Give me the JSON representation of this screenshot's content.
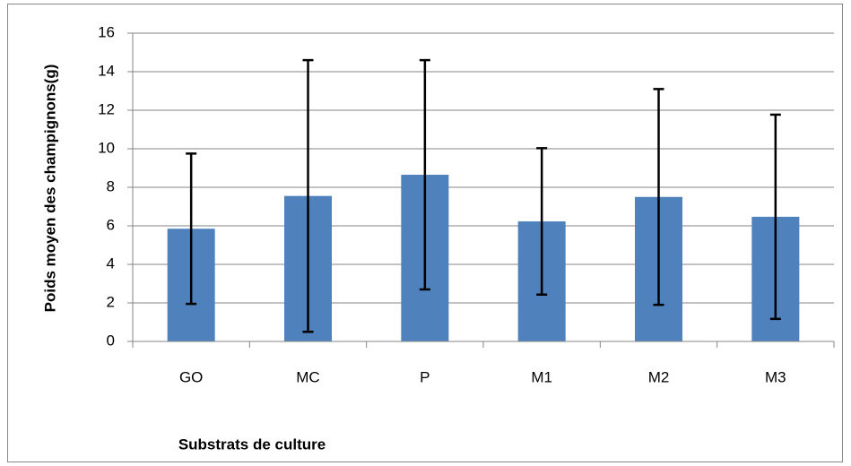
{
  "chart_data": {
    "type": "bar",
    "x_label": "Substrats de culture",
    "y_label": "Poids moyen  des champignons(g)",
    "categories": [
      "GO",
      "MC",
      "P",
      "M1",
      "M2",
      "M3"
    ],
    "values": [
      5.85,
      7.55,
      8.65,
      6.23,
      7.5,
      6.47
    ],
    "errors": [
      3.9,
      7.05,
      5.95,
      3.8,
      5.6,
      5.3
    ],
    "color": "#4f81bd",
    "ylim": [
      0,
      16
    ],
    "yticks": [
      0,
      2,
      4,
      6,
      8,
      10,
      12,
      14,
      16
    ],
    "grid": true
  }
}
